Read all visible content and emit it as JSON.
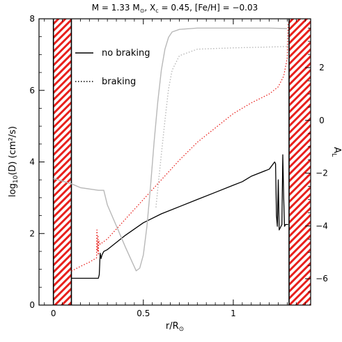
{
  "chart_data": {
    "type": "line",
    "title": "M = 1.33 M⊙, Xc = 0.45, [Fe/H] = −0.03",
    "title_parts": {
      "m": "M = 1.33 M",
      "x": ", X",
      "x_sub": "c",
      "rest": " = 0.45, [Fe/H] = −0.03"
    },
    "sun_symbol": "⊙",
    "xlabel": "r/R⊙",
    "xlabel_parts": {
      "main": "r/R",
      "sub": "⊙"
    },
    "ylabel": "log10(D) (cm²/s)",
    "ylabel_parts": {
      "pre": "log",
      "sub": "10",
      "post": "(D) (cm²/s)"
    },
    "y2label": "Aₗ",
    "y2label_parts": {
      "main": "A",
      "sub": "L"
    },
    "xlim": [
      -0.08,
      1.43
    ],
    "ylim": [
      0,
      8
    ],
    "y2lim": [
      -7.0,
      3.85
    ],
    "xticks": [
      0,
      0.5,
      1
    ],
    "xtick_labels": [
      "0",
      "0.5",
      "1"
    ],
    "yticks": [
      0,
      2,
      4,
      6,
      8
    ],
    "ytick_labels": [
      "0",
      "2",
      "4",
      "6",
      "8"
    ],
    "y2ticks": [
      -6,
      -4,
      -2,
      0,
      2
    ],
    "y2tick_labels": [
      "−6",
      "−4",
      "−2",
      "0",
      "2"
    ],
    "hatched_regions": [
      [
        0,
        0.1
      ],
      [
        1.31,
        1.43
      ]
    ],
    "legend": {
      "position": "top-left",
      "entries": [
        {
          "label": "no braking",
          "style": "solid"
        },
        {
          "label": "braking",
          "style": "dotted"
        }
      ]
    },
    "colors": {
      "black": "#000000",
      "red": "#e8201c",
      "gray": "#b8b8b8",
      "hatch": "#e8201c"
    },
    "series": [
      {
        "axis": "left",
        "color": "black",
        "style": "solid",
        "x": [
          0.1,
          0.25,
          0.255,
          0.26,
          0.265,
          0.27,
          0.28,
          0.3,
          0.4,
          0.5,
          0.6,
          0.7,
          0.8,
          0.9,
          1.0,
          1.05,
          1.1,
          1.2,
          1.23,
          1.235,
          1.24,
          1.245,
          1.25,
          1.255,
          1.26,
          1.265,
          1.27,
          1.275,
          1.28,
          1.285,
          1.29,
          1.3,
          1.305
        ],
        "y": [
          0.75,
          0.75,
          0.85,
          1.45,
          1.3,
          1.4,
          1.5,
          1.55,
          1.95,
          2.3,
          2.55,
          2.75,
          2.95,
          3.15,
          3.35,
          3.45,
          3.6,
          3.8,
          4.0,
          3.95,
          2.5,
          2.2,
          3.5,
          2.1,
          2.15,
          2.2,
          2.25,
          4.2,
          3.0,
          2.2,
          2.25,
          2.25,
          2.25
        ]
      },
      {
        "axis": "left",
        "color": "red",
        "style": "dotted",
        "x": [
          0.1,
          0.15,
          0.2,
          0.24,
          0.242,
          0.245,
          0.248,
          0.25,
          0.252,
          0.26,
          0.3,
          0.4,
          0.5,
          0.6,
          0.7,
          0.8,
          0.9,
          1.0,
          1.1,
          1.2,
          1.25,
          1.28,
          1.3,
          1.305
        ],
        "y": [
          0.95,
          1.08,
          1.2,
          1.32,
          2.1,
          1.5,
          1.95,
          1.4,
          1.8,
          1.7,
          1.85,
          2.4,
          2.95,
          3.5,
          4.05,
          4.55,
          4.95,
          5.35,
          5.65,
          5.9,
          6.1,
          6.4,
          6.9,
          7.9
        ]
      },
      {
        "axis": "right",
        "color": "gray",
        "style": "solid",
        "x": [
          0.0,
          0.1,
          0.15,
          0.2,
          0.25,
          0.28,
          0.3,
          0.35,
          0.4,
          0.44,
          0.46,
          0.48,
          0.5,
          0.52,
          0.54,
          0.56,
          0.58,
          0.6,
          0.62,
          0.64,
          0.66,
          0.7,
          0.8,
          1.0,
          1.2,
          1.3
        ],
        "y": [
          -2.2,
          -2.4,
          -2.55,
          -2.6,
          -2.65,
          -2.65,
          -3.2,
          -4.0,
          -4.8,
          -5.4,
          -5.7,
          -5.6,
          -5.1,
          -4.0,
          -2.5,
          -0.8,
          0.7,
          1.9,
          2.7,
          3.15,
          3.35,
          3.45,
          3.5,
          3.5,
          3.5,
          3.48
        ]
      },
      {
        "axis": "right",
        "color": "gray",
        "style": "dotted",
        "x": [
          0.57,
          0.58,
          0.6,
          0.62,
          0.64,
          0.66,
          0.7,
          0.8,
          1.0,
          1.2,
          1.3
        ],
        "y": [
          -3.3,
          -2.6,
          -1.3,
          0.0,
          1.2,
          1.9,
          2.45,
          2.7,
          2.75,
          2.78,
          2.8
        ]
      }
    ]
  }
}
